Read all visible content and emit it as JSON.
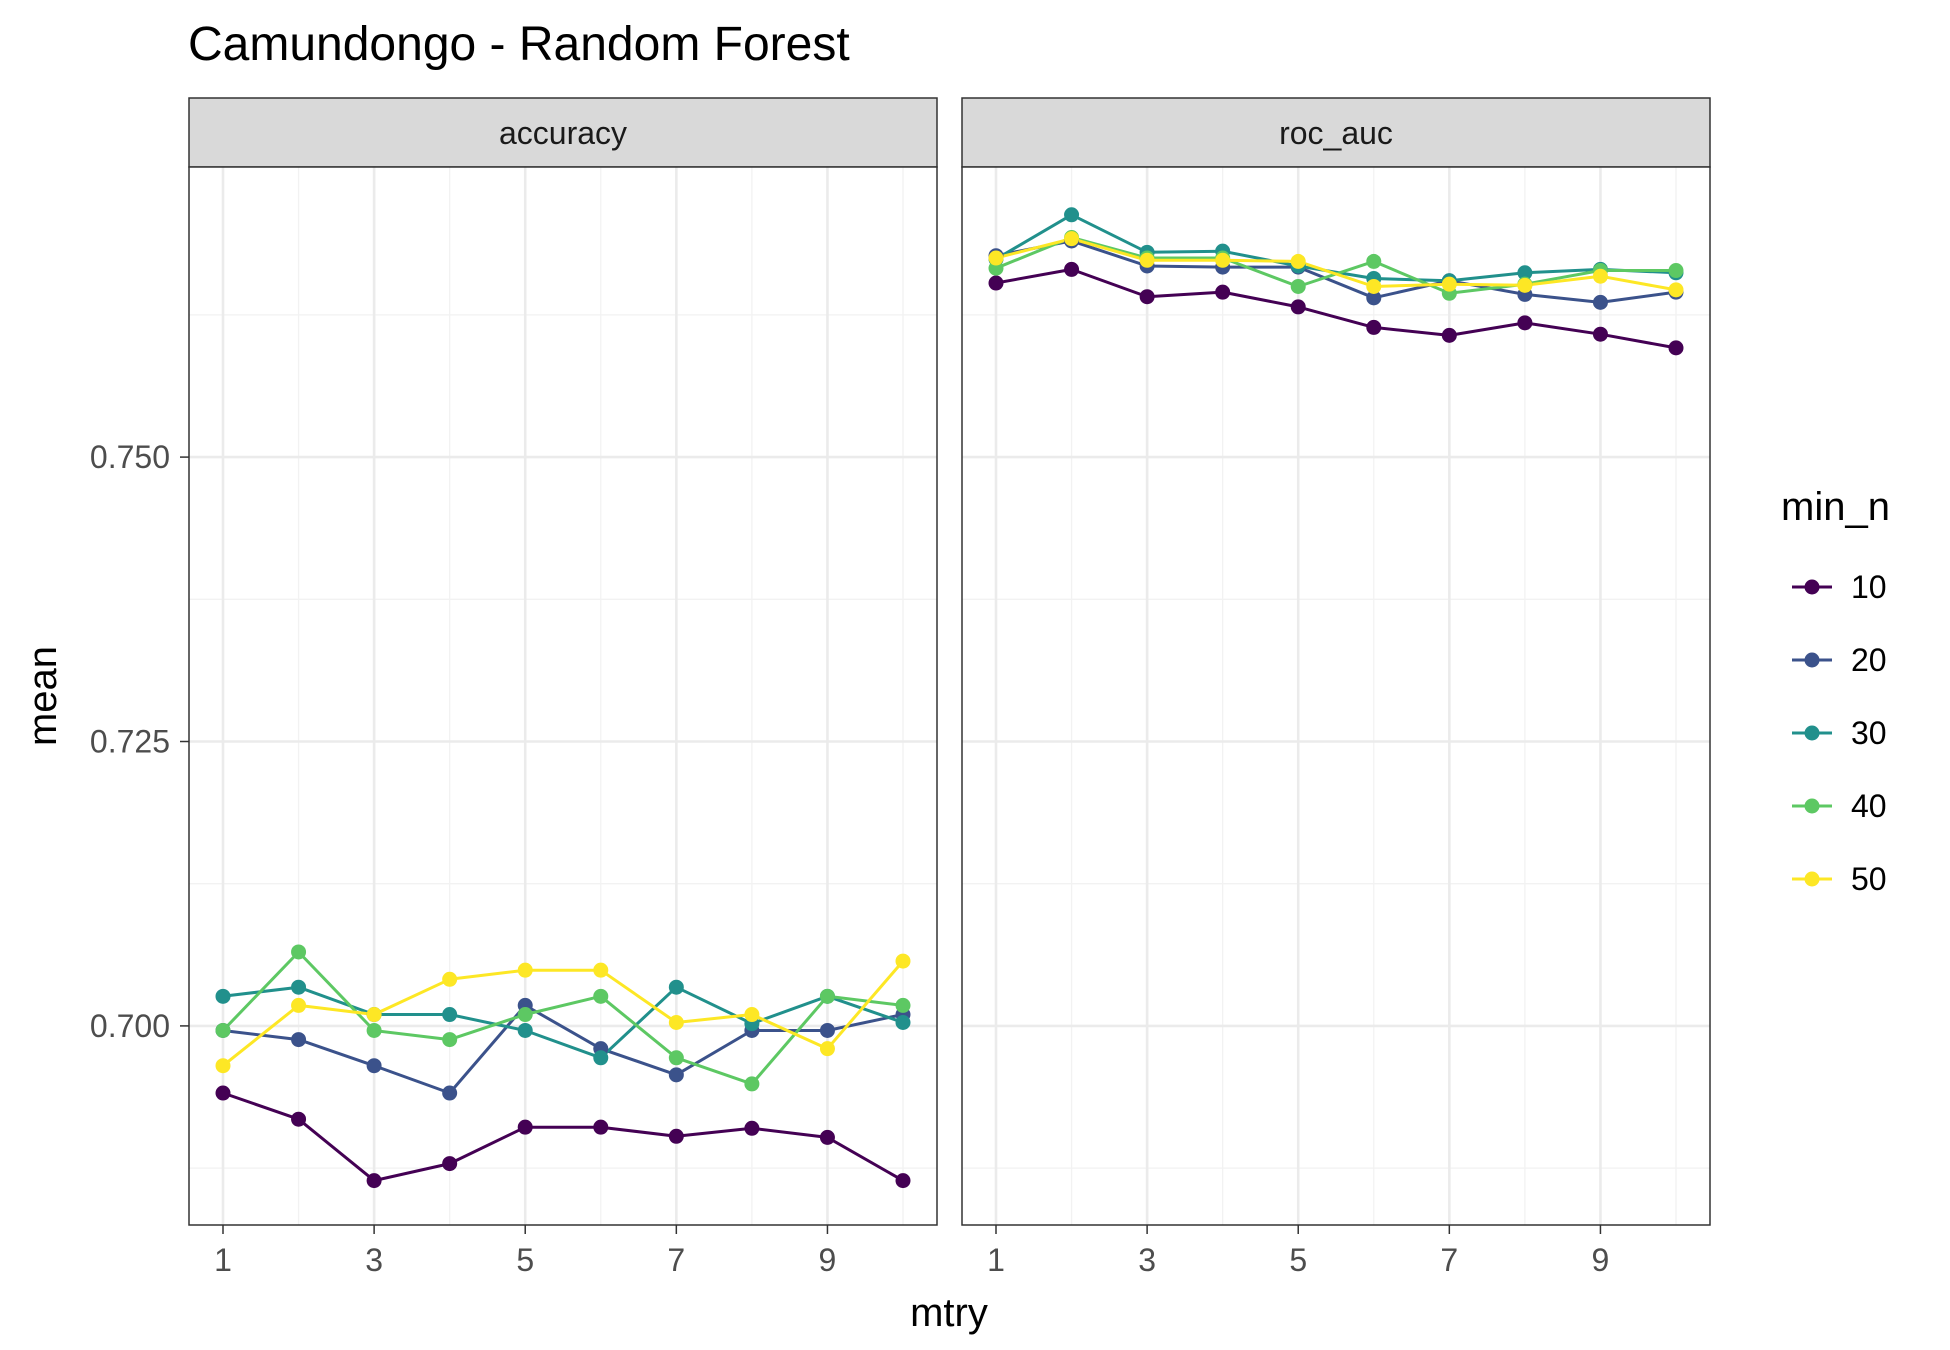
{
  "chart_data": {
    "type": "line",
    "title": "Camundongo - Random Forest",
    "xlabel": "mtry",
    "ylabel": "mean",
    "x_ticks": [
      1,
      3,
      5,
      7,
      9
    ],
    "y_ticks": [
      0.7,
      0.725,
      0.75
    ],
    "y_tick_labels": [
      "0.700",
      "0.725",
      "0.750"
    ],
    "xlim": [
      0.55,
      10.45
    ],
    "ylim": [
      0.6825,
      0.7755
    ],
    "grid": true,
    "facets": [
      "accuracy",
      "roc_auc"
    ],
    "legend": {
      "title": "min_n",
      "position": "right"
    },
    "x": [
      1,
      2,
      3,
      4,
      5,
      6,
      7,
      8,
      9,
      10
    ],
    "series": [
      {
        "name": "10",
        "color": "#440154",
        "values": {
          "accuracy": [
            0.6941,
            0.6918,
            0.6864,
            0.6879,
            0.6911,
            0.6911,
            0.6903,
            0.691,
            0.6902,
            0.6864
          ],
          "roc_auc": [
            0.7653,
            0.7665,
            0.7641,
            0.7645,
            0.7632,
            0.7614,
            0.7607,
            0.7618,
            0.7608,
            0.7596
          ]
        }
      },
      {
        "name": "20",
        "color": "#3B528B",
        "values": {
          "accuracy": [
            0.6996,
            0.6988,
            0.6965,
            0.6941,
            0.7018,
            0.698,
            0.6957,
            0.6996,
            0.6996,
            0.701
          ],
          "roc_auc": [
            0.7677,
            0.769,
            0.7668,
            0.7667,
            0.7667,
            0.764,
            0.7655,
            0.7643,
            0.7636,
            0.7645
          ]
        }
      },
      {
        "name": "30",
        "color": "#21908C",
        "values": {
          "accuracy": [
            0.7026,
            0.7034,
            0.701,
            0.701,
            0.6996,
            0.6972,
            0.7034,
            0.7002,
            0.7026,
            0.7003
          ],
          "roc_auc": [
            0.7674,
            0.7713,
            0.768,
            0.7681,
            0.7668,
            0.7657,
            0.7655,
            0.7662,
            0.7665,
            0.7662
          ]
        }
      },
      {
        "name": "40",
        "color": "#5DC863",
        "values": {
          "accuracy": [
            0.6996,
            0.7065,
            0.6996,
            0.6988,
            0.701,
            0.7026,
            0.6972,
            0.6949,
            0.7026,
            0.7018
          ],
          "roc_auc": [
            0.7666,
            0.7693,
            0.7675,
            0.7675,
            0.765,
            0.7672,
            0.7644,
            0.7652,
            0.7664,
            0.7664
          ]
        }
      },
      {
        "name": "50",
        "color": "#FDE725",
        "values": {
          "accuracy": [
            0.6965,
            0.7018,
            0.701,
            0.7041,
            0.7049,
            0.7049,
            0.7003,
            0.701,
            0.698,
            0.7057
          ],
          "roc_auc": [
            0.7675,
            0.7692,
            0.7673,
            0.7673,
            0.7672,
            0.765,
            0.7652,
            0.7651,
            0.7659,
            0.7647
          ]
        }
      }
    ]
  }
}
